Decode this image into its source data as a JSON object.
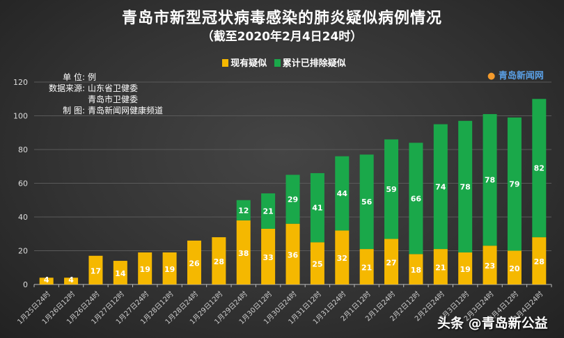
{
  "chart_data": {
    "type": "bar",
    "stacked": true,
    "title": "青岛市新型冠状病毒感染的肺炎疑似病例情况",
    "subtitle": "（截至2020年2月4日24时）",
    "xlabel": "",
    "ylabel": "",
    "ylim": [
      0,
      120
    ],
    "yticks": [
      0,
      20,
      40,
      60,
      80,
      100,
      120
    ],
    "grid": true,
    "legend_position": "top-center",
    "categories": [
      "1月25日24时",
      "1月26日12时",
      "1月26日24时",
      "1月27日12时",
      "1月27日24时",
      "1月28日12时",
      "1月28日24时",
      "1月29日12时",
      "1月29日24时",
      "1月30日12时",
      "1月30日24时",
      "1月31日12时",
      "1月31日24时",
      "2月1日12时",
      "2月1日24时",
      "2月2日12时",
      "2月2日24时",
      "2月3日12时",
      "2月3日24时",
      "2月4日12时",
      "2月4日24时"
    ],
    "series": [
      {
        "name": "现有疑似",
        "color": "#f5b800",
        "values": [
          4,
          4,
          17,
          14,
          19,
          19,
          26,
          28,
          38,
          33,
          36,
          25,
          32,
          21,
          27,
          18,
          21,
          19,
          23,
          20,
          28
        ]
      },
      {
        "name": "累计已排除疑似",
        "color": "#1aa84a",
        "values": [
          0,
          0,
          0,
          0,
          0,
          0,
          0,
          0,
          12,
          21,
          29,
          41,
          44,
          56,
          59,
          66,
          74,
          78,
          78,
          79,
          82
        ]
      }
    ]
  },
  "info": {
    "unit_label": "单 位:",
    "unit_value": "例",
    "source_label": "数据来源:",
    "source_1": "山东省卫健委",
    "source_2": "青岛市卫健委",
    "maker_label": "制 图:",
    "maker_value": "青岛新闻网健康频道"
  },
  "logo_text": "青岛新闻网",
  "watermark": "头条 @青岛新公益"
}
